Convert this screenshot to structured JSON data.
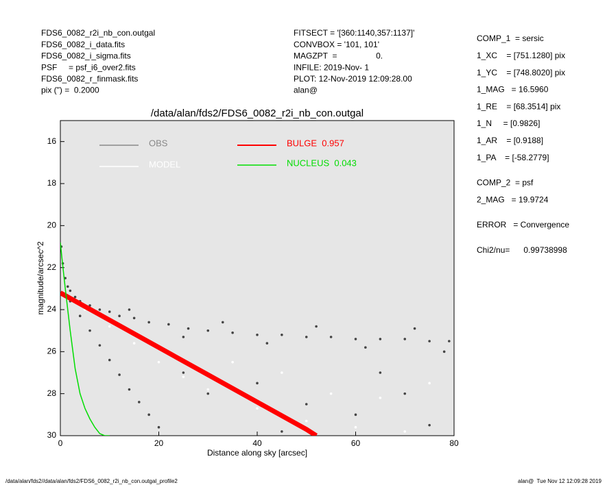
{
  "header": {
    "left": [
      "FDS6_0082_r2i_nb_con.outgal",
      "FDS6_0082_i_data.fits",
      "FDS6_0082_i_sigma.fits",
      "PSF     = psf_i6_over2.fits",
      "FDS6_0082_r_finmask.fits",
      "pix (\") =  0.2000"
    ],
    "middle": [
      "FITSECT = '[360:1140,357:1137]'",
      "CONVBOX = '101, 101'",
      "MAGZPT  =                 0.",
      "INFILE: 2019-Nov- 1",
      "PLOT: 12-Nov-2019 12:09:28.00",
      "alan@"
    ]
  },
  "parameters": [
    [
      "COMP_1  = sersic",
      "1_XC    = [751.1280] pix",
      "1_YC    = [748.8020] pix",
      "1_MAG   = 16.5960",
      "1_RE    = [68.3514] pix",
      "1_N     = [0.9826]",
      "1_AR    = [0.9188]",
      "1_PA    = [-58.2779]"
    ],
    [
      "COMP_2  = psf",
      "2_MAG   = 19.9724"
    ],
    [
      "ERROR   = Convergence"
    ],
    [
      "Chi2/nu=      0.99738998"
    ]
  ],
  "footer": {
    "left": "/data/alan/fds2//data/alan/fds2/FDS6_0082_r2i_nb_con.outgal_profile2",
    "right": "alan@  Tue Nov 12 12:09:28 2019"
  },
  "chart_data": {
    "type": "scatter",
    "title": "/data/alan/fds2/FDS6_0082_r2i_nb_con.outgal",
    "x_label": "Distance along sky [arcsec]",
    "y_label": "magnitude/arcsec^2",
    "xlim": [
      0,
      80
    ],
    "ylim": [
      15,
      30
    ],
    "y_inverted": true,
    "xticks": [
      0,
      20,
      40,
      60,
      80
    ],
    "yticks": [
      16,
      18,
      20,
      22,
      24,
      26,
      28,
      30
    ],
    "background": "#e6e6e6",
    "series": [
      {
        "name": "OBS",
        "color": "#444444",
        "legend_color": "#888888",
        "kind": "points",
        "x": [
          0.2,
          0.5,
          1,
          1.5,
          2,
          3,
          4,
          6,
          8,
          10,
          12,
          15,
          18,
          22,
          26,
          30,
          35,
          40,
          45,
          50,
          55,
          60,
          65,
          70,
          75,
          79,
          14,
          25,
          33,
          42,
          52,
          62,
          72,
          78,
          2,
          4,
          6,
          8,
          10,
          12,
          14,
          16,
          18,
          20,
          25,
          30,
          40,
          50,
          60,
          70,
          75,
          45,
          65
        ],
        "values": [
          21.0,
          21.8,
          22.5,
          22.9,
          23.1,
          23.4,
          23.6,
          23.8,
          24.0,
          24.1,
          24.3,
          24.4,
          24.6,
          24.7,
          24.9,
          25.0,
          25.1,
          25.2,
          25.2,
          25.3,
          25.3,
          25.4,
          25.4,
          25.4,
          25.5,
          25.5,
          24.0,
          25.3,
          24.6,
          25.6,
          24.8,
          25.8,
          24.9,
          26.0,
          23.6,
          24.3,
          25.0,
          25.7,
          26.4,
          27.1,
          27.8,
          28.4,
          29.0,
          29.6,
          27.0,
          28.0,
          27.5,
          28.5,
          29.0,
          28.0,
          29.5,
          29.8,
          27.0
        ]
      },
      {
        "name": "MODEL",
        "color": "#ffffff",
        "legend_color": "#ffffff",
        "kind": "points",
        "x": [
          2,
          5,
          10,
          15,
          20,
          25,
          30,
          40,
          50,
          60,
          70,
          35,
          45,
          55,
          65,
          75
        ],
        "values": [
          23.4,
          24.0,
          24.8,
          25.6,
          26.5,
          27.2,
          27.8,
          28.7,
          29.3,
          29.6,
          29.8,
          26.5,
          27.0,
          28.0,
          28.2,
          27.5
        ]
      },
      {
        "name": "BULGE  0.957",
        "color": "#ff0000",
        "legend_color": "#ff0000",
        "kind": "band",
        "x": [
          0,
          10,
          20,
          30,
          40,
          50,
          52
        ],
        "values": [
          23.2,
          24.5,
          25.8,
          27.1,
          28.4,
          29.7,
          30.0
        ]
      },
      {
        "name": "NUCLEUS  0.043",
        "color": "#00dd00",
        "legend_color": "#00dd00",
        "kind": "line",
        "x": [
          0,
          0.3,
          1,
          2,
          3,
          4,
          5,
          6,
          7,
          8,
          9,
          10
        ],
        "values": [
          20.8,
          21.5,
          23.0,
          25.0,
          26.8,
          28.0,
          28.7,
          29.2,
          29.6,
          29.9,
          30.0,
          30.0
        ]
      }
    ]
  }
}
